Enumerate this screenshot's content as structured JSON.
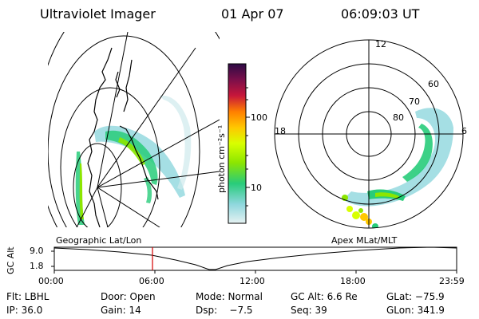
{
  "header": {
    "instrument": "Ultraviolet Imager",
    "date": "01 Apr 07",
    "time": "06:09:03 UT"
  },
  "colorbar": {
    "label": "photon cm⁻²s⁻¹",
    "ticks": [
      "100",
      "10"
    ],
    "scale": "log",
    "colors": [
      "#2c0b45",
      "#7b0f4a",
      "#c7163a",
      "#ff7f00",
      "#ffc800",
      "#d8ff00",
      "#8ce600",
      "#28cc7a",
      "#8ed7dd",
      "#e6f2f2"
    ]
  },
  "polar_plot": {
    "labels": {
      "top": "12",
      "left": "18",
      "right": "6",
      "lat60": "60",
      "lat70": "70",
      "lat80": "80"
    }
  },
  "timeline": {
    "left_title": "Geographic Lat/Lon",
    "right_title": "Apex MLat/MLT",
    "y_axis_label": "GC Alt",
    "y_ticks": [
      "9.0",
      "1.8"
    ],
    "x_ticks": [
      "00:00",
      "06:00",
      "12:00",
      "18:00",
      "23:59"
    ],
    "marker_color": "#d40000"
  },
  "metadata": {
    "flt": "Flt: LBHL",
    "door": "Door: Open",
    "mode": "Mode: Normal",
    "gc_alt": "GC Alt: 6.6 Re",
    "glat": "GLat: −75.9",
    "ip": "IP: 36.0",
    "gain": "Gain: 14",
    "dsp": "Dsp:    −7.5",
    "seq": "Seq: 39",
    "glon": "GLon: 341.9"
  }
}
